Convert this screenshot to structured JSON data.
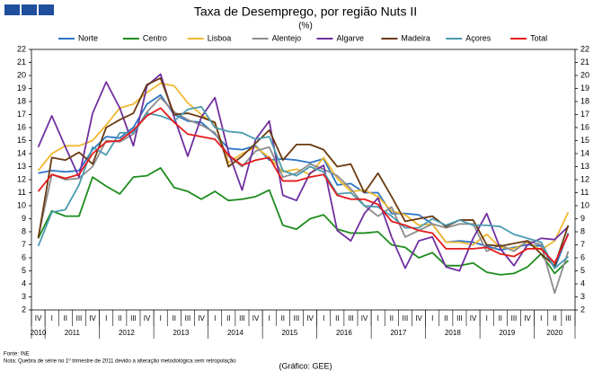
{
  "chart_data": {
    "type": "line",
    "title": "Taxa de Desemprego, por região Nuts II",
    "subtitle": "(%)",
    "categories": [
      "IV",
      "I",
      "II",
      "III",
      "IV",
      "I",
      "II",
      "III",
      "IV",
      "I",
      "II",
      "III",
      "IV",
      "I",
      "II",
      "III",
      "IV",
      "I",
      "II",
      "III",
      "IV",
      "I",
      "II",
      "III",
      "IV",
      "I",
      "II",
      "III",
      "IV",
      "I",
      "II",
      "III",
      "IV",
      "I",
      "II",
      "III",
      "IV",
      "I",
      "II",
      "III"
    ],
    "years": [
      "2010",
      "2011",
      "2012",
      "2013",
      "2014",
      "2015",
      "2016",
      "2017",
      "2018",
      "2019",
      "2020"
    ],
    "ylim": [
      2,
      22
    ],
    "yticks": [
      2,
      3,
      4,
      5,
      6,
      7,
      8,
      9,
      10,
      11,
      12,
      13,
      14,
      15,
      16,
      17,
      18,
      19,
      20,
      21,
      22
    ],
    "grid": false,
    "series": [
      {
        "name": "Norte",
        "color": "#2e75c7",
        "values": [
          12.5,
          12.7,
          12.6,
          12.7,
          14.3,
          15.3,
          15.2,
          16.0,
          17.8,
          18.5,
          17.0,
          16.5,
          16.4,
          15.5,
          14.4,
          14.3,
          14.6,
          13.5,
          13.6,
          13.5,
          13.3,
          13.6,
          11.6,
          11.7,
          11.0,
          11.0,
          9.4,
          9.4,
          9.3,
          8.6,
          7.2,
          7.3,
          7.2,
          6.9,
          6.6,
          6.8,
          7.0,
          6.9,
          5.2,
          7.9
        ]
      },
      {
        "name": "Centro",
        "color": "#1e8c1e",
        "values": [
          7.5,
          9.6,
          9.2,
          9.2,
          12.2,
          11.5,
          10.9,
          12.2,
          12.3,
          12.9,
          11.4,
          11.1,
          10.5,
          11.1,
          10.4,
          10.5,
          10.7,
          11.2,
          8.5,
          8.2,
          9.0,
          9.3,
          8.2,
          7.9,
          7.9,
          8.0,
          7.0,
          6.8,
          6.0,
          6.4,
          5.4,
          5.4,
          5.6,
          4.9,
          4.7,
          4.8,
          5.3,
          6.3,
          4.8,
          5.8
        ]
      },
      {
        "name": "Lisboa",
        "color": "#f0b830",
        "values": [
          12.7,
          14.0,
          14.6,
          14.6,
          15.0,
          16.2,
          17.5,
          17.8,
          18.7,
          19.4,
          19.2,
          17.9,
          17.0,
          16.3,
          13.3,
          14.0,
          14.5,
          13.7,
          12.6,
          12.8,
          12.4,
          13.7,
          12.1,
          11.1,
          11.2,
          10.7,
          9.6,
          9.3,
          8.5,
          8.6,
          7.2,
          7.2,
          7.0,
          7.8,
          6.8,
          6.7,
          7.2,
          6.6,
          7.3,
          9.5
        ]
      },
      {
        "name": "Alentejo",
        "color": "#8c8c8c",
        "values": [
          7.6,
          12.4,
          12.0,
          12.1,
          13.0,
          15.0,
          14.9,
          15.5,
          17.2,
          18.3,
          17.2,
          16.6,
          16.2,
          15.6,
          13.8,
          13.0,
          14.2,
          14.5,
          12.2,
          12.5,
          13.2,
          12.8,
          12.3,
          11.3,
          10.0,
          9.2,
          9.9,
          7.6,
          8.1,
          8.6,
          8.3,
          8.6,
          8.6,
          6.5,
          7.0,
          6.5,
          7.3,
          7.0,
          3.3,
          6.5
        ]
      },
      {
        "name": "Algarve",
        "color": "#7030a0",
        "values": [
          14.5,
          16.9,
          14.5,
          12.2,
          17.1,
          19.5,
          17.5,
          14.6,
          19.2,
          20.1,
          16.8,
          13.8,
          16.8,
          18.3,
          14.1,
          11.2,
          15.1,
          16.5,
          10.8,
          10.4,
          12.5,
          13.1,
          8.1,
          7.3,
          9.4,
          10.6,
          7.6,
          5.2,
          7.3,
          7.6,
          5.3,
          5.0,
          7.5,
          9.4,
          6.7,
          5.4,
          7.0,
          7.5,
          7.4,
          8.4
        ]
      },
      {
        "name": "Madeira",
        "color": "#6b3a10",
        "values": [
          7.5,
          13.7,
          13.5,
          14.1,
          13.2,
          16.0,
          16.6,
          17.1,
          19.3,
          19.8,
          17.0,
          17.1,
          16.8,
          16.4,
          13.0,
          13.8,
          14.8,
          15.8,
          13.5,
          14.7,
          14.7,
          14.3,
          13.0,
          13.2,
          11.0,
          12.5,
          10.7,
          8.8,
          9.0,
          9.2,
          8.4,
          8.9,
          8.9,
          7.0,
          6.9,
          7.1,
          7.3,
          6.3,
          5.4,
          8.5
        ]
      },
      {
        "name": "Açores",
        "color": "#4a9bb0",
        "values": [
          6.9,
          9.5,
          9.7,
          11.6,
          14.5,
          13.9,
          15.6,
          15.6,
          17.1,
          16.9,
          16.5,
          17.4,
          17.6,
          16.0,
          15.7,
          15.6,
          15.1,
          15.3,
          12.7,
          12.3,
          13.0,
          12.6,
          10.9,
          11.0,
          10.0,
          9.9,
          9.2,
          8.3,
          8.3,
          9.0,
          8.5,
          8.9,
          8.5,
          8.5,
          8.4,
          7.8,
          7.5,
          7.2,
          5.2,
          6.1
        ]
      },
      {
        "name": "Total",
        "color": "#e31a1c",
        "values": [
          11.1,
          12.4,
          12.1,
          12.4,
          14.0,
          14.9,
          15.0,
          15.8,
          16.9,
          17.5,
          16.4,
          15.5,
          15.3,
          15.1,
          13.9,
          13.1,
          13.5,
          13.7,
          11.9,
          11.9,
          12.2,
          12.4,
          10.8,
          10.5,
          10.5,
          10.1,
          8.8,
          8.5,
          8.1,
          7.9,
          6.7,
          6.7,
          6.7,
          6.8,
          6.3,
          6.1,
          6.7,
          6.7,
          5.6,
          7.8
        ]
      }
    ],
    "source": "Fonte: INE",
    "note": "Nota: Quebra de série no 1º trimestre de 2011 devido a alteração metodológica sem retropolação",
    "credit": "(Gráfico: GEE)"
  }
}
